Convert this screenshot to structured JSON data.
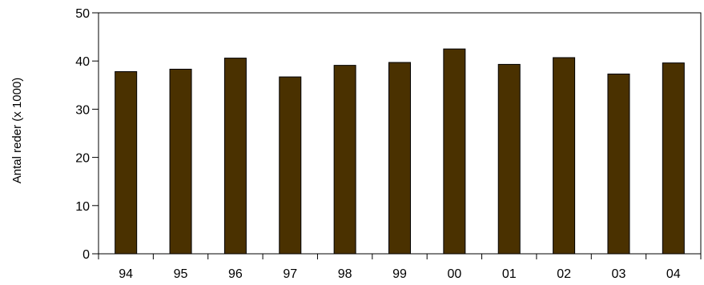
{
  "chart_data": {
    "type": "bar",
    "title": "",
    "xlabel": "",
    "ylabel": "Antal reder (x 1000)",
    "categories": [
      "94",
      "95",
      "96",
      "97",
      "98",
      "99",
      "00",
      "01",
      "02",
      "03",
      "04"
    ],
    "values": [
      37.8,
      38.3,
      40.6,
      36.7,
      39.1,
      39.7,
      42.5,
      39.3,
      40.7,
      37.3,
      39.6
    ],
    "ylim": [
      0,
      50
    ],
    "yticks": [
      0,
      10,
      20,
      30,
      40,
      50
    ],
    "grid": false,
    "legend": "none",
    "bar_color": "#4a3100",
    "bar_edge_color": "#000000",
    "axis_color": "#000000"
  }
}
